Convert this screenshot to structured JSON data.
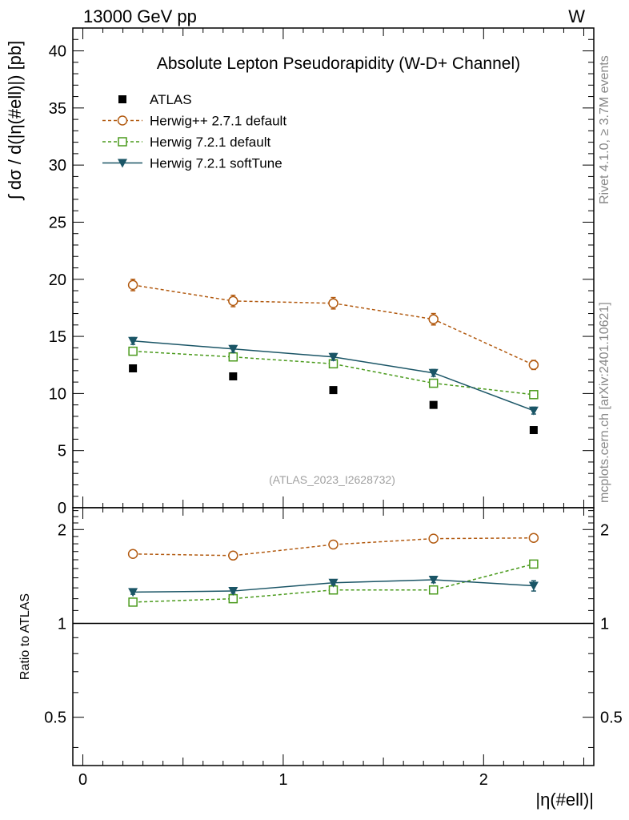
{
  "header": {
    "left": "13000 GeV pp",
    "right": "W"
  },
  "side_text": {
    "top": "Rivet 4.1.0, ≥ 3.7M events",
    "bottom": "mcplots.cern.ch [arXiv:2401.10621]"
  },
  "chart_data": {
    "type": "line",
    "title": "Absolute Lepton Pseudorapidity (W-D+ Channel)",
    "watermark": "(ATLAS_2023_I2628732)",
    "xlabel": "|η(#ell)|",
    "ylabel": "∫ dσ / d(|η(#ell)|) [pb]",
    "ratio_ylabel": "Ratio to ATLAS",
    "xlim": [
      -0.05,
      2.55
    ],
    "ylim": [
      0,
      42
    ],
    "ratio_ylim": [
      0.35,
      2.35
    ],
    "x_ticks": [
      0,
      1,
      2
    ],
    "x_tick_labels": [
      "0",
      "1",
      "2"
    ],
    "y_ticks": [
      0,
      5,
      10,
      15,
      20,
      25,
      30,
      35,
      40
    ],
    "y_tick_labels": [
      "0",
      "5",
      "10",
      "15",
      "20",
      "25",
      "30",
      "35",
      "40"
    ],
    "ratio_ticks": [
      0.5,
      1,
      2
    ],
    "ratio_tick_labels": [
      "0.5",
      "1",
      "2"
    ],
    "x": [
      0.25,
      0.75,
      1.25,
      1.75,
      2.25
    ],
    "series": [
      {
        "name": "ATLAS",
        "color": "#000000",
        "marker": "square-filled",
        "line": "none",
        "values": [
          12.2,
          11.5,
          10.3,
          9.0,
          6.8
        ],
        "errors": [
          0,
          0,
          0,
          0,
          0
        ]
      },
      {
        "name": "Herwig++ 2.7.1 default",
        "color": "#b25a10",
        "marker": "circle-open",
        "line": "dashed",
        "values": [
          19.5,
          18.1,
          17.9,
          16.5,
          12.5
        ],
        "errors": [
          0.5,
          0.5,
          0.5,
          0.5,
          0.4
        ],
        "ratio": [
          1.67,
          1.65,
          1.79,
          1.87,
          1.88
        ],
        "ratio_errors": [
          0.02,
          0.02,
          0.02,
          0.03,
          0.04
        ]
      },
      {
        "name": "Herwig 7.2.1 default",
        "color": "#4a9a1c",
        "marker": "square-open",
        "line": "dashed",
        "values": [
          13.7,
          13.2,
          12.6,
          10.9,
          9.9
        ],
        "errors": [
          0.3,
          0.3,
          0.3,
          0.3,
          0.2
        ],
        "ratio": [
          1.17,
          1.2,
          1.28,
          1.28,
          1.55
        ],
        "ratio_errors": [
          0.02,
          0.02,
          0.03,
          0.03,
          0.04
        ]
      },
      {
        "name": "Herwig 7.2.1 softTune",
        "color": "#1a5566",
        "marker": "triangle-down-filled",
        "line": "solid",
        "values": [
          14.6,
          13.9,
          13.2,
          11.8,
          8.5
        ],
        "errors": [
          0.3,
          0.3,
          0.3,
          0.3,
          0.3
        ],
        "ratio": [
          1.26,
          1.27,
          1.35,
          1.38,
          1.32
        ],
        "ratio_errors": [
          0.02,
          0.02,
          0.02,
          0.03,
          0.05
        ]
      }
    ]
  }
}
